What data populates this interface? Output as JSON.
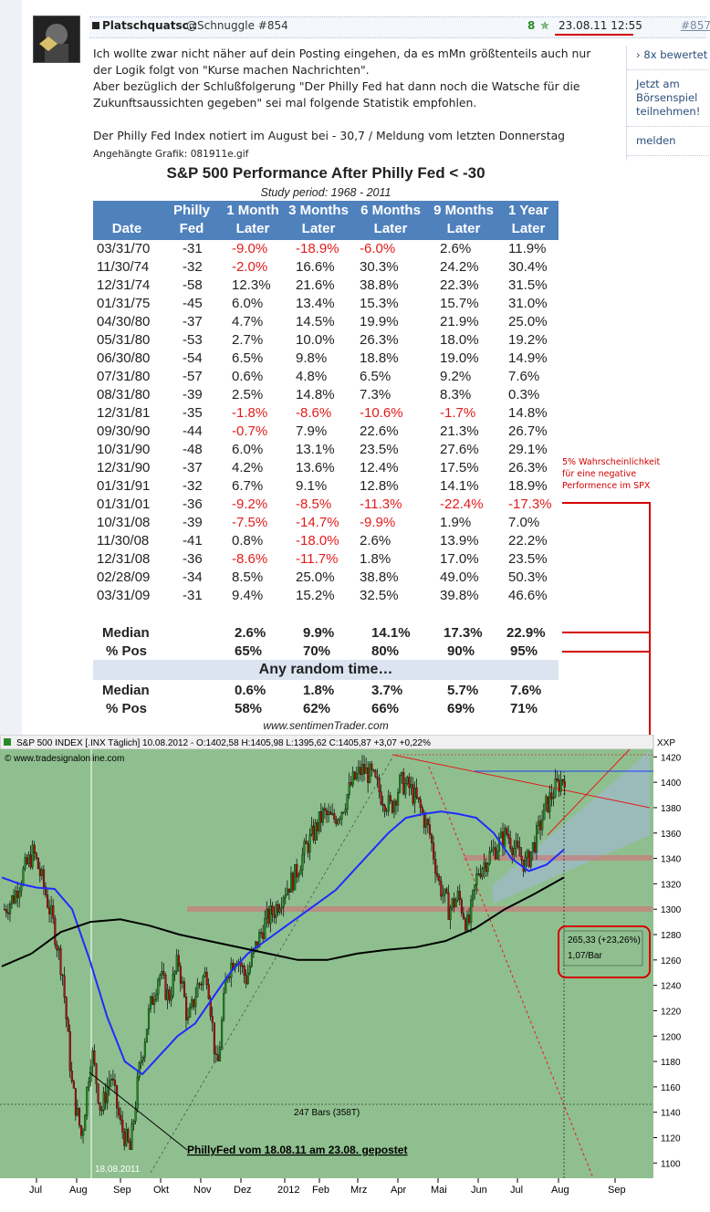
{
  "post": {
    "author": "Platschquatsc.:",
    "reply_to": "@Schnuggle #854",
    "score": "8",
    "date": "23.08.11 12:55",
    "post_number": "#857",
    "text_lines": [
      "Ich wollte zwar nicht näher auf dein Posting eingehen, da es mMn größtenteils auch nur",
      "der Logik folgt von \"Kurse machen Nachrichten\".",
      "Aber bezüglich der Schlußfolgerung \"Der Philly Fed hat dann noch die Watsche für die",
      "Zukunftsaussichten gegeben\" sei mal folgende Statistik empfohlen."
    ],
    "text_line2": "Der Philly Fed Index notiert im August bei - 30,7 / Meldung vom letzten Donnerstag",
    "attachment": "Angehängte Grafik: 081911e.gif"
  },
  "sidebar": {
    "rated": "8x bewertet",
    "play": "Jetzt am Börsenspiel teilnehmen!",
    "report": "melden"
  },
  "table": {
    "title": "S&P 500 Performance After Philly Fed < -30",
    "subtitle": "Study period:  1968 - 2011",
    "headers": [
      [
        "",
        "Date"
      ],
      [
        "Philly",
        "Fed"
      ],
      [
        "1 Month",
        "Later"
      ],
      [
        "3 Months",
        "Later"
      ],
      [
        "6 Months",
        "Later"
      ],
      [
        "9 Months",
        "Later"
      ],
      [
        "1 Year",
        "Later"
      ]
    ],
    "rows": [
      [
        "03/31/70",
        "-31",
        "-9.0%",
        "-18.9%",
        "-6.0%",
        "2.6%",
        "11.9%"
      ],
      [
        "11/30/74",
        "-32",
        "-2.0%",
        "16.6%",
        "30.3%",
        "24.2%",
        "30.4%"
      ],
      [
        "12/31/74",
        "-58",
        "12.3%",
        "21.6%",
        "38.8%",
        "22.3%",
        "31.5%"
      ],
      [
        "01/31/75",
        "-45",
        "6.0%",
        "13.4%",
        "15.3%",
        "15.7%",
        "31.0%"
      ],
      [
        "04/30/80",
        "-37",
        "4.7%",
        "14.5%",
        "19.9%",
        "21.9%",
        "25.0%"
      ],
      [
        "05/31/80",
        "-53",
        "2.7%",
        "10.0%",
        "26.3%",
        "18.0%",
        "19.2%"
      ],
      [
        "06/30/80",
        "-54",
        "6.5%",
        "9.8%",
        "18.8%",
        "19.0%",
        "14.9%"
      ],
      [
        "07/31/80",
        "-57",
        "0.6%",
        "4.8%",
        "6.5%",
        "9.2%",
        "7.6%"
      ],
      [
        "08/31/80",
        "-39",
        "2.5%",
        "14.8%",
        "7.3%",
        "8.3%",
        "0.3%"
      ],
      [
        "12/31/81",
        "-35",
        "-1.8%",
        "-8.6%",
        "-10.6%",
        "-1.7%",
        "14.8%"
      ],
      [
        "09/30/90",
        "-44",
        "-0.7%",
        "7.9%",
        "22.6%",
        "21.3%",
        "26.7%"
      ],
      [
        "10/31/90",
        "-48",
        "6.0%",
        "13.1%",
        "23.5%",
        "27.6%",
        "29.1%"
      ],
      [
        "12/31/90",
        "-37",
        "4.2%",
        "13.6%",
        "12.4%",
        "17.5%",
        "26.3%"
      ],
      [
        "01/31/91",
        "-32",
        "6.7%",
        "9.1%",
        "12.8%",
        "14.1%",
        "18.9%"
      ],
      [
        "01/31/01",
        "-36",
        "-9.2%",
        "-8.5%",
        "-11.3%",
        "-22.4%",
        "-17.3%"
      ],
      [
        "10/31/08",
        "-39",
        "-7.5%",
        "-14.7%",
        "-9.9%",
        "1.9%",
        "7.0%"
      ],
      [
        "11/30/08",
        "-41",
        "0.8%",
        "-18.0%",
        "2.6%",
        "13.9%",
        "22.2%"
      ],
      [
        "12/31/08",
        "-36",
        "-8.6%",
        "-11.7%",
        "1.8%",
        "17.0%",
        "23.5%"
      ],
      [
        "02/28/09",
        "-34",
        "8.5%",
        "25.0%",
        "38.8%",
        "49.0%",
        "50.3%"
      ],
      [
        "03/31/09",
        "-31",
        "9.4%",
        "15.2%",
        "32.5%",
        "39.8%",
        "46.6%"
      ]
    ],
    "median": [
      "Median",
      "2.6%",
      "9.9%",
      "14.1%",
      "17.3%",
      "22.9%"
    ],
    "pos": [
      "% Pos",
      "65%",
      "70%",
      "80%",
      "90%",
      "95%"
    ],
    "random_label": "Any random time…",
    "rand_median": [
      "Median",
      "0.6%",
      "1.8%",
      "3.7%",
      "5.7%",
      "7.6%"
    ],
    "rand_pos": [
      "% Pos",
      "58%",
      "62%",
      "66%",
      "69%",
      "71%"
    ],
    "credit": "www.sentimenTrader.com"
  },
  "annotation": [
    "5% Wahrscheinlichkeit",
    "für eine negative",
    "Performence im SPX"
  ],
  "chart_data": {
    "type": "line",
    "title": "S&P 500 INDEX [.INX  Täglich] 10.08.2012 - O:1402,58 H:1405,98 L:1395,62 C:1405,87 +3,07 +0,22%",
    "source": "© www.tradesignalonline.com",
    "symbol": "XXP",
    "x_labels": [
      "Jul",
      "Aug",
      "Sep",
      "Okt",
      "Nov",
      "Dez",
      "2012",
      "Feb",
      "Mrz",
      "Apr",
      "Mai",
      "Jun",
      "Jul",
      "Aug",
      "Sep"
    ],
    "y_ticks": [
      1100,
      1120,
      1140,
      1160,
      1180,
      1200,
      1220,
      1240,
      1260,
      1280,
      1300,
      1320,
      1340,
      1360,
      1380,
      1400,
      1420
    ],
    "ylim": [
      1088,
      1426
    ],
    "close_path": [
      1300,
      1310,
      1330,
      1345,
      1320,
      1290,
      1250,
      1160,
      1120,
      1190,
      1140,
      1170,
      1130,
      1110,
      1175,
      1220,
      1250,
      1230,
      1260,
      1210,
      1240,
      1250,
      1170,
      1250,
      1265,
      1245,
      1270,
      1290,
      1300,
      1315,
      1325,
      1345,
      1360,
      1375,
      1370,
      1380,
      1400,
      1410,
      1405,
      1390,
      1380,
      1400,
      1395,
      1380,
      1360,
      1320,
      1300,
      1310,
      1285,
      1330,
      1340,
      1350,
      1360,
      1345,
      1335,
      1355,
      1380,
      1395,
      1405
    ],
    "ma_blue": [
      1325,
      1320,
      1317,
      1316,
      1300,
      1260,
      1215,
      1180,
      1170,
      1185,
      1200,
      1210,
      1230,
      1250,
      1265,
      1275,
      1285,
      1295,
      1305,
      1315,
      1330,
      1345,
      1360,
      1372,
      1375,
      1377,
      1375,
      1372,
      1360,
      1340,
      1330,
      1335,
      1347
    ],
    "ma_black": [
      1255,
      1265,
      1282,
      1290,
      1292,
      1287,
      1280,
      1275,
      1270,
      1265,
      1260,
      1260,
      1265,
      1268,
      1270,
      1275,
      1285,
      1300,
      1312,
      1325
    ],
    "annotation_bars": "247 Bars (358T)",
    "annotation_change": "265,33 (+23,26%)",
    "annotation_rate": "1,07/Bar",
    "annotation_date": "18.08.2011",
    "annotation_note": "PhillyFed vom 18.08.11 am 23.08. gepostet"
  },
  "colors": {
    "chart_bg": "#8fbf8f",
    "header_blue": "#4f81bd",
    "neg_red": "#e31b1b",
    "annot_red": "#d40000"
  }
}
